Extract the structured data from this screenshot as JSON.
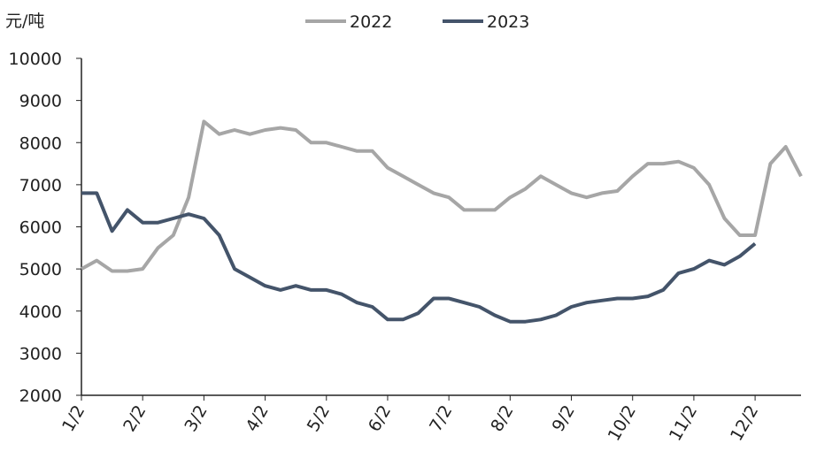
{
  "chart_data": {
    "type": "line",
    "y_label": "元/吨",
    "categories": [
      "1/2",
      null,
      null,
      null,
      "2/2",
      null,
      null,
      null,
      "3/2",
      null,
      null,
      null,
      "4/2",
      null,
      null,
      null,
      "5/2",
      null,
      null,
      null,
      "6/2",
      null,
      null,
      null,
      "7/2",
      null,
      null,
      null,
      "8/2",
      null,
      null,
      null,
      "9/2",
      null,
      null,
      null,
      "10/2",
      null,
      null,
      null,
      "11/2",
      null,
      null,
      null,
      "12/2",
      null,
      null,
      null
    ],
    "series": [
      {
        "name": "2022",
        "color": "#a6a6a6",
        "values": [
          5000,
          5200,
          4950,
          4950,
          5000,
          5500,
          5800,
          6700,
          8500,
          8200,
          8300,
          8200,
          8300,
          8350,
          8300,
          8000,
          8000,
          7900,
          7800,
          7800,
          7400,
          7200,
          7000,
          6800,
          6700,
          6400,
          6400,
          6400,
          6700,
          6900,
          7200,
          7000,
          6800,
          6700,
          6800,
          6850,
          7200,
          7500,
          7500,
          7550,
          7400,
          7000,
          6200,
          5800,
          5800,
          7500,
          7900,
          7200
        ]
      },
      {
        "name": "2023",
        "color": "#44546a",
        "values": [
          6800,
          6800,
          5900,
          6400,
          6100,
          6100,
          6200,
          6300,
          6200,
          5800,
          5000,
          4800,
          4600,
          4500,
          4600,
          4500,
          4500,
          4400,
          4200,
          4100,
          3800,
          3800,
          3950,
          4300,
          4300,
          4200,
          4100,
          3900,
          3750,
          3750,
          3800,
          3900,
          4100,
          4200,
          4250,
          4300,
          4300,
          4350,
          4500,
          4900,
          5000,
          5200,
          5100,
          5300,
          5600,
          null,
          null,
          null
        ]
      }
    ],
    "ylim": [
      2000,
      10000
    ],
    "yticks": [
      2000,
      3000,
      4000,
      5000,
      6000,
      7000,
      8000,
      9000,
      10000
    ]
  }
}
